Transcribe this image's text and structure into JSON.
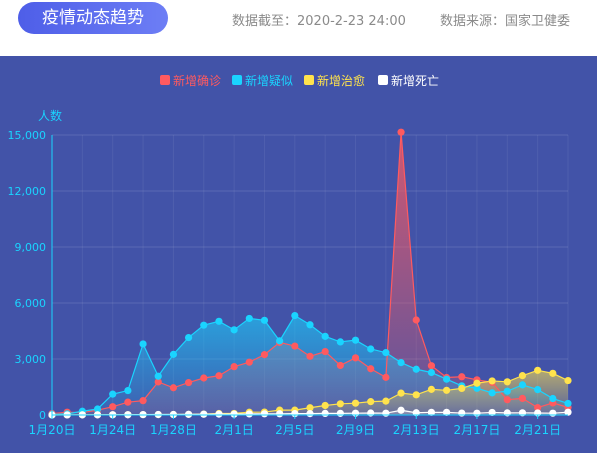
{
  "header": {
    "title": "疫情动态趋势",
    "date_text": "数据截至：2020-2-23 24:00",
    "source_text": "数据来源：国家卫健委"
  },
  "colors": {
    "background": "#4253a8",
    "confirmed": "#ff5a5f",
    "suspected": "#1ad4ff",
    "cured": "#ffe34d",
    "dead": "#ffffff",
    "axis": "#1ad4ff"
  },
  "chart_data": {
    "type": "line",
    "ylabel": "人数",
    "ylim": [
      0,
      15000
    ],
    "yticks": [
      "0",
      "3,000",
      "6,000",
      "9,000",
      "12,000",
      "15,000"
    ],
    "xtick_labels": [
      "1月20日",
      "1月24日",
      "1月28日",
      "2月1日",
      "2月5日",
      "2月9日",
      "2月13日",
      "2月17日",
      "2月21日"
    ],
    "legend_position": "top-center",
    "grid": true,
    "x": [
      "1.20",
      "1.21",
      "1.22",
      "1.23",
      "1.24",
      "1.25",
      "1.26",
      "1.27",
      "1.28",
      "1.29",
      "1.30",
      "1.31",
      "2.1",
      "2.2",
      "2.3",
      "2.4",
      "2.5",
      "2.6",
      "2.7",
      "2.8",
      "2.9",
      "2.10",
      "2.11",
      "2.12",
      "2.13",
      "2.14",
      "2.15",
      "2.16",
      "2.17",
      "2.18",
      "2.19",
      "2.20",
      "2.21",
      "2.22",
      "2.23"
    ],
    "series": [
      {
        "name": "新增确诊",
        "color": "#ff5a5f",
        "values": [
          77,
          149,
          131,
          259,
          444,
          688,
          769,
          1771,
          1459,
          1737,
          1982,
          2102,
          2590,
          2829,
          3235,
          3887,
          3694,
          3143,
          3399,
          2656,
          3062,
          2478,
          2015,
          15152,
          5090,
          2641,
          2009,
          2048,
          1886,
          1749,
          820,
          889,
          397,
          648,
          409
        ]
      },
      {
        "name": "新增疑似",
        "color": "#1ad4ff",
        "values": [
          27,
          60,
          200,
          320,
          1118,
          1309,
          3806,
          2077,
          3248,
          4148,
          4812,
          5019,
          4562,
          5173,
          5072,
          3971,
          5328,
          4833,
          4214,
          3916,
          4008,
          3536,
          3342,
          2807,
          2450,
          2277,
          1918,
          1563,
          1432,
          1185,
          1277,
          1614,
          1361,
          882,
          620
        ]
      },
      {
        "name": "新增治愈",
        "color": "#ffe34d",
        "values": [
          0,
          3,
          6,
          9,
          11,
          15,
          18,
          21,
          25,
          33,
          45,
          80,
          85,
          147,
          157,
          262,
          261,
          387,
          510,
          600,
          632,
          716,
          744,
          1171,
          1081,
          1373,
          1323,
          1425,
          1701,
          1824,
          1779,
          2109,
          2394,
          2231,
          1846
        ]
      },
      {
        "name": "新增死亡",
        "color": "#ffffff",
        "values": [
          0,
          3,
          8,
          8,
          16,
          15,
          24,
          26,
          26,
          38,
          43,
          46,
          45,
          57,
          64,
          65,
          73,
          73,
          86,
          89,
          97,
          108,
          97,
          254,
          121,
          143,
          142,
          105,
          98,
          136,
          114,
          118,
          109,
          97,
          150
        ]
      }
    ]
  }
}
